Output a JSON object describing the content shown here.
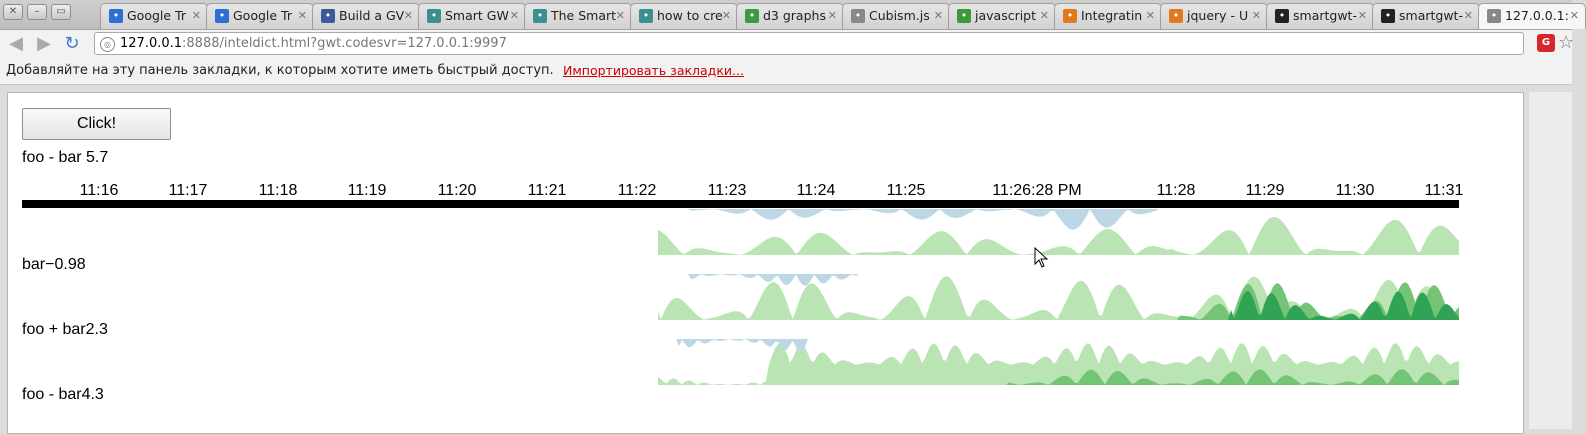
{
  "browser": {
    "tabs": [
      {
        "title": "Google Tr",
        "icon": "google-translate-icon",
        "color": "#2d6fd2"
      },
      {
        "title": "Google Tr",
        "icon": "google-translate-icon",
        "color": "#2d6fd2"
      },
      {
        "title": "Build a GV",
        "icon": "gwt-page-icon",
        "color": "#3a5a9a"
      },
      {
        "title": "Smart GW",
        "icon": "smartclient-icon",
        "color": "#3a8f8f"
      },
      {
        "title": "The Smart",
        "icon": "smartclient-icon",
        "color": "#3a8f8f"
      },
      {
        "title": "how to cre",
        "icon": "smartclient-icon",
        "color": "#3a8f8f"
      },
      {
        "title": "d3 graphs",
        "icon": "google-groups-icon",
        "color": "#3c9a3c"
      },
      {
        "title": "Cubism.js",
        "icon": "page-icon",
        "color": "#888888"
      },
      {
        "title": "javascript",
        "icon": "google-icon",
        "color": "#3c9a3c"
      },
      {
        "title": "Integratin",
        "icon": "stackoverflow-icon",
        "color": "#e07a1f"
      },
      {
        "title": "jquery - U",
        "icon": "stackoverflow-icon",
        "color": "#e07a1f"
      },
      {
        "title": "smartgwt-",
        "icon": "github-icon",
        "color": "#222222"
      },
      {
        "title": "smartgwt-",
        "icon": "github-icon",
        "color": "#222222"
      },
      {
        "title": "127.0.0.1:",
        "icon": "document-icon",
        "color": "#888888"
      }
    ],
    "address": {
      "host": "127.0.0.1",
      "rest": ":8888/inteldict.html?gwt.codesvr=127.0.0.1:9997"
    },
    "bookmarks_bar": {
      "message": "Добавляйте на эту панель закладки, к которым хотите иметь быстрый доступ.",
      "import_link": "Импортировать закладки..."
    }
  },
  "page": {
    "button_label": "Click!",
    "metric_labels": [
      "foo - bar 5.7",
      "bar−0.98",
      "foo + bar2.3",
      "foo - bar4.3"
    ]
  },
  "chart_data": {
    "type": "area",
    "axis_ticks": [
      "11:16",
      "11:17",
      "11:18",
      "11:19",
      "11:20",
      "11:21",
      "11:22",
      "11:23",
      "11:24",
      "11:25",
      "11:26:28 PM",
      "11:28",
      "11:29",
      "11:30",
      "11:31"
    ],
    "colors": {
      "positive_light": "#bae4b3",
      "positive_mid": "#74c476",
      "positive_dark": "#31a354",
      "negative_light": "#bdd7e7"
    }
  }
}
